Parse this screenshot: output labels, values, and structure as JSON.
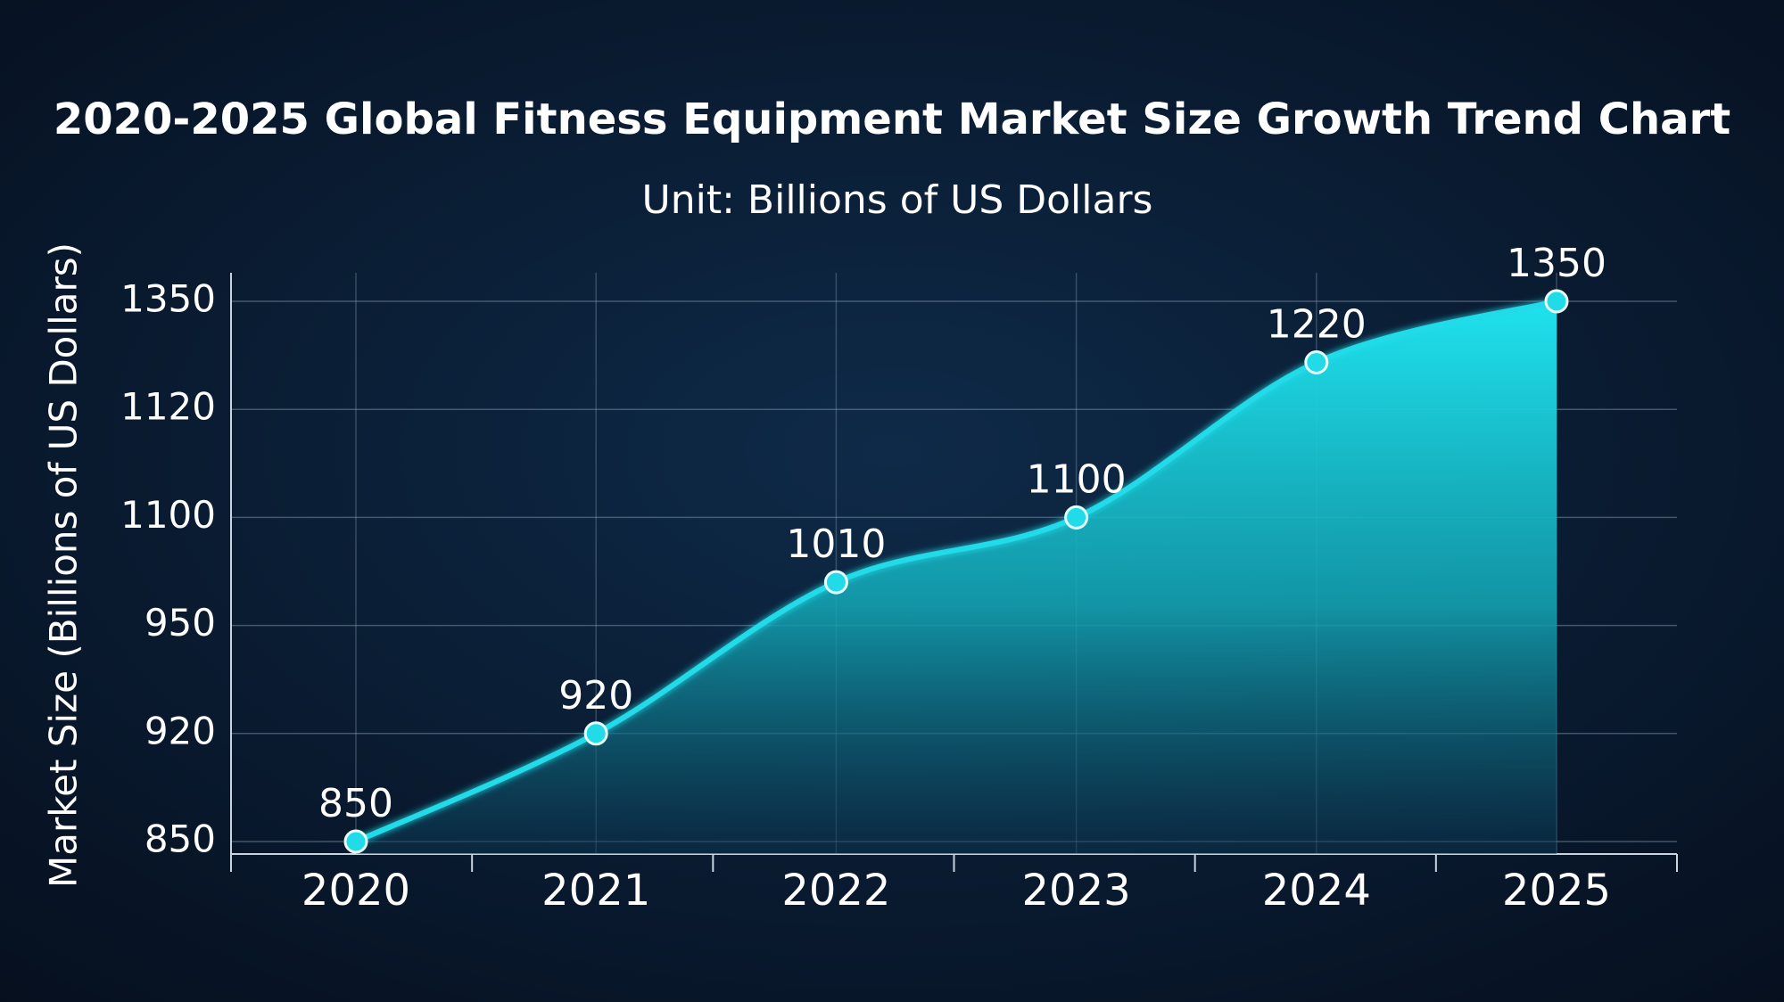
{
  "chart_data": {
    "type": "area",
    "title": "2020-2025 Global Fitness Equipment Market Size Growth Trend Chart",
    "subtitle": "Unit: Billions of US Dollars",
    "y_label": "Market Size (Billions of US Dollars)",
    "categories": [
      "2020",
      "2021",
      "2022",
      "2023",
      "2024",
      "2025"
    ],
    "values": [
      850,
      920,
      1010,
      1100,
      1220,
      1350
    ],
    "color": "#22dbe8",
    "ylim": [
      850,
      1350
    ],
    "yticks": [
      850,
      920,
      950,
      1100,
      1120,
      1350
    ],
    "grid": true
  }
}
